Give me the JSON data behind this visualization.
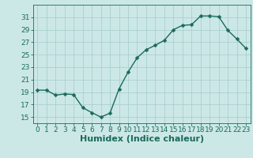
{
  "x": [
    0,
    1,
    2,
    3,
    4,
    5,
    6,
    7,
    8,
    9,
    10,
    11,
    12,
    13,
    14,
    15,
    16,
    17,
    18,
    19,
    20,
    21,
    22,
    23
  ],
  "y": [
    19.3,
    19.3,
    18.5,
    18.7,
    18.6,
    16.5,
    15.7,
    15.0,
    15.6,
    19.5,
    22.2,
    24.5,
    25.8,
    26.5,
    27.3,
    29.0,
    29.7,
    29.8,
    31.2,
    31.2,
    31.1,
    28.9,
    27.5,
    26.0
  ],
  "xlabel": "Humidex (Indice chaleur)",
  "line_color": "#1a6b5a",
  "marker": "D",
  "marker_size": 2.5,
  "bg_color": "#cce8e6",
  "grid_color": "#aacfcd",
  "tick_color": "#1a6b5a",
  "axis_color": "#1a6b5a",
  "ylim": [
    14,
    33
  ],
  "xlim": [
    -0.5,
    23.5
  ],
  "yticks": [
    15,
    17,
    19,
    21,
    23,
    25,
    27,
    29,
    31
  ],
  "xticks": [
    0,
    1,
    2,
    3,
    4,
    5,
    6,
    7,
    8,
    9,
    10,
    11,
    12,
    13,
    14,
    15,
    16,
    17,
    18,
    19,
    20,
    21,
    22,
    23
  ],
  "xlabel_fontsize": 8,
  "tick_fontsize": 6.5,
  "line_width": 1.0
}
